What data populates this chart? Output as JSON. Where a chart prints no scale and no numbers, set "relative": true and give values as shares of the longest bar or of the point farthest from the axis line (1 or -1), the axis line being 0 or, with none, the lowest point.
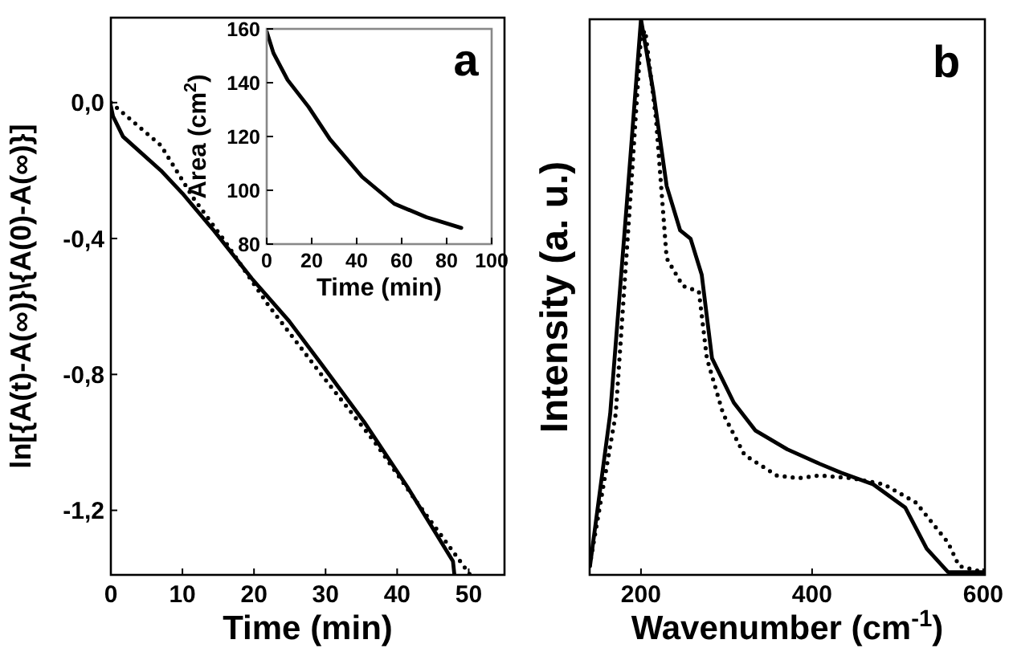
{
  "chart_data": [
    {
      "type": "line",
      "xlabel": "Time (min)",
      "ylabel": "ln[{A(t)-A(∞)}\\{A(0)-A(∞)}]",
      "annotations": [
        "a"
      ],
      "xlim": [
        0,
        55
      ],
      "ylim": [
        -1.39,
        0.25
      ],
      "xticks": [
        0,
        10,
        20,
        30,
        40,
        50
      ],
      "yticks": [
        {
          "value": 0,
          "label": "0,0"
        },
        {
          "value": -0.4,
          "label": "-0,4"
        },
        {
          "value": -0.8,
          "label": "-0,8"
        },
        {
          "value": -1.2,
          "label": "-1,2"
        }
      ],
      "grid": false,
      "series": [
        {
          "color": "#000000",
          "line_style": "solid",
          "x": [
            0,
            0.3,
            1.7,
            7,
            10,
            14.4,
            19.7,
            24.9,
            29.4,
            35.4,
            41.4,
            47.8,
            48
          ],
          "values": [
            -0.01,
            -0.04,
            -0.1,
            -0.2,
            -0.267,
            -0.377,
            -0.518,
            -0.643,
            -0.769,
            -0.94,
            -1.13,
            -1.35,
            -1.39
          ]
        },
        {
          "color": "#000000",
          "line_style": "dotted",
          "x": [
            0,
            7,
            11.5,
            16,
            22,
            29.4,
            36.9,
            42.9,
            50.2
          ],
          "values": [
            0,
            -0.126,
            -0.28,
            -0.41,
            -0.596,
            -0.8,
            -1.0,
            -1.18,
            -1.39
          ]
        }
      ]
    },
    {
      "type": "line",
      "xlabel": "Time (min)",
      "ylabel": "Area (cm$^{2}$)",
      "xlim": [
        0,
        100
      ],
      "ylim": [
        80,
        160
      ],
      "xticks": [
        0,
        20,
        40,
        60,
        80,
        100
      ],
      "yticks": [
        80,
        100,
        120,
        140,
        160
      ],
      "grid": false,
      "series": [
        {
          "color": "#000000",
          "line_style": "solid",
          "x": [
            0,
            3,
            9.3,
            18.6,
            28.1,
            42.4,
            56.7,
            71,
            86.5
          ],
          "values": [
            159,
            151,
            141,
            131,
            119,
            105,
            95,
            90,
            86
          ]
        }
      ]
    },
    {
      "type": "line",
      "relative": true,
      "xlabel": "Wavenumber (cm$^{-1}$)",
      "ylabel": "Intensity (a. u.)",
      "annotations": [
        "b"
      ],
      "xlim": [
        140,
        602
      ],
      "xticks": [
        200,
        400,
        600
      ],
      "grid": false,
      "series": [
        {
          "color": "#000000",
          "line_style": "solid",
          "x": [
            140.4,
            164,
            183,
            200,
            214.4,
            230,
            245.8,
            258,
            271,
            283,
            308.5,
            333.6,
            371,
            408.8,
            433.9,
            471.5,
            509,
            534,
            559,
            600
          ],
          "values": [
            0.016,
            0.29,
            0.66,
            1,
            0.87,
            0.7,
            0.62,
            0.605,
            0.54,
            0.39,
            0.31,
            0.26,
            0.226,
            0.2,
            0.184,
            0.163,
            0.121,
            0.047,
            0.005,
            0.005
          ]
        },
        {
          "color": "#000000",
          "line_style": "dotted",
          "x": [
            140,
            170.5,
            189,
            200,
            205,
            217.6,
            230,
            249,
            267.7,
            277,
            296,
            321,
            358.6,
            383.7,
            408.8,
            446.4,
            484,
            521.6,
            559,
            571.8,
            600
          ],
          "values": [
            0.016,
            0.29,
            0.71,
            0.97,
            0.98,
            0.82,
            0.57,
            0.52,
            0.51,
            0.39,
            0.29,
            0.216,
            0.179,
            0.174,
            0.179,
            0.174,
            0.163,
            0.13,
            0.058,
            0.016,
            0.005
          ]
        }
      ]
    }
  ]
}
